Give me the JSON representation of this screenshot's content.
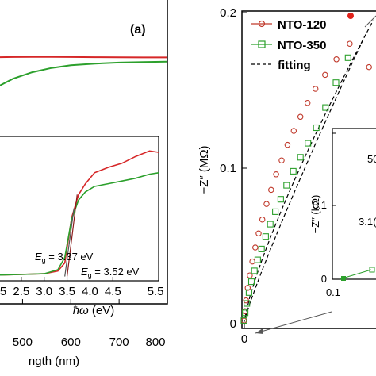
{
  "chart_data": [
    {
      "panel_label": "(a)",
      "type": "line",
      "xlabel": "ngth (nm)",
      "xticks": [
        "500",
        "600",
        "700",
        "800"
      ],
      "xlim": [
        450,
        800
      ],
      "colors": [
        "#d62728",
        "#2ca02c"
      ],
      "series": [
        {
          "x": [
            450,
            480,
            520,
            560,
            600,
            650,
            700,
            750,
            800
          ],
          "y": [
            0.72,
            0.721,
            0.722,
            0.722,
            0.721,
            0.72,
            0.719,
            0.718,
            0.718
          ]
        },
        {
          "x": [
            450,
            480,
            520,
            560,
            600,
            650,
            700,
            750,
            800
          ],
          "y": [
            0.45,
            0.52,
            0.58,
            0.62,
            0.645,
            0.66,
            0.67,
            0.675,
            0.678
          ]
        }
      ],
      "inset": {
        "type": "line",
        "xlabel": "ħω (eV)",
        "xticks": [
          "5",
          "2.5",
          "3.0",
          "3.5",
          "4.0",
          "4.5",
          "5.5"
        ],
        "xlim": [
          2.0,
          5.5
        ],
        "annotations": [
          {
            "text": "E",
            "sub": "g",
            "rest": " = 3.37 eV"
          },
          {
            "text": "E",
            "sub": "g",
            "rest": " = 3.52 eV"
          }
        ],
        "series": [
          {
            "x": [
              2.0,
              3.0,
              3.3,
              3.45,
              3.6,
              3.75,
              3.9,
              4.1,
              4.4,
              4.7,
              5.0,
              5.3,
              5.5
            ],
            "y": [
              0.03,
              0.04,
              0.06,
              0.12,
              0.45,
              0.62,
              0.7,
              0.78,
              0.82,
              0.85,
              0.9,
              0.94,
              0.93
            ]
          },
          {
            "x": [
              2.0,
              3.0,
              3.3,
              3.45,
              3.6,
              3.75,
              3.9,
              4.1,
              4.4,
              4.7,
              5.0,
              5.3,
              5.5
            ],
            "y": [
              0.03,
              0.04,
              0.07,
              0.16,
              0.44,
              0.58,
              0.64,
              0.68,
              0.7,
              0.72,
              0.74,
              0.77,
              0.78
            ]
          }
        ],
        "fits": [
          {
            "x": [
              3.5,
              3.72
            ],
            "y": [
              0.02,
              0.62
            ]
          },
          {
            "x": [
              3.45,
              3.65
            ],
            "y": [
              0.02,
              0.52
            ]
          }
        ]
      }
    },
    {
      "type": "scatter",
      "ylabel": "−Z″ (MΩ)",
      "yticks": [
        "0",
        "0.1",
        "0.2"
      ],
      "xticks": [
        "0"
      ],
      "xlim": [
        0,
        0.55
      ],
      "ylim": [
        0,
        0.2
      ],
      "legend": [
        "NTO-120",
        "NTO-350",
        "fitting"
      ],
      "colors": [
        "#c0392b",
        "#2ca02c",
        "#000000"
      ],
      "series": [
        {
          "x": [
            0.001,
            0.003,
            0.006,
            0.01,
            0.015,
            0.021,
            0.028,
            0.036,
            0.045,
            0.055,
            0.066,
            0.078,
            0.091,
            0.105,
            0.12,
            0.136,
            0.153,
            0.172,
            0.195,
            0.222,
            0.254,
            0.3
          ],
          "y": [
            0.002,
            0.008,
            0.015,
            0.023,
            0.031,
            0.04,
            0.049,
            0.058,
            0.067,
            0.077,
            0.086,
            0.096,
            0.105,
            0.115,
            0.124,
            0.133,
            0.142,
            0.151,
            0.16,
            0.17,
            0.18,
            0.165
          ]
        },
        {
          "x": [
            0.001,
            0.004,
            0.008,
            0.013,
            0.019,
            0.026,
            0.034,
            0.043,
            0.053,
            0.064,
            0.076,
            0.089,
            0.103,
            0.119,
            0.136,
            0.154,
            0.174,
            0.196,
            0.221,
            0.25
          ],
          "y": [
            0.002,
            0.007,
            0.013,
            0.02,
            0.027,
            0.034,
            0.041,
            0.048,
            0.056,
            0.064,
            0.072,
            0.08,
            0.089,
            0.098,
            0.107,
            0.116,
            0.126,
            0.139,
            0.155,
            0.171
          ]
        }
      ],
      "inset": {
        "ylabel": "−Z″ (kΩ)",
        "yticks": [
          "0",
          "0.1"
        ],
        "xticks": [
          "0.1"
        ],
        "annotations": [
          "50",
          "3.1("
        ]
      }
    }
  ]
}
